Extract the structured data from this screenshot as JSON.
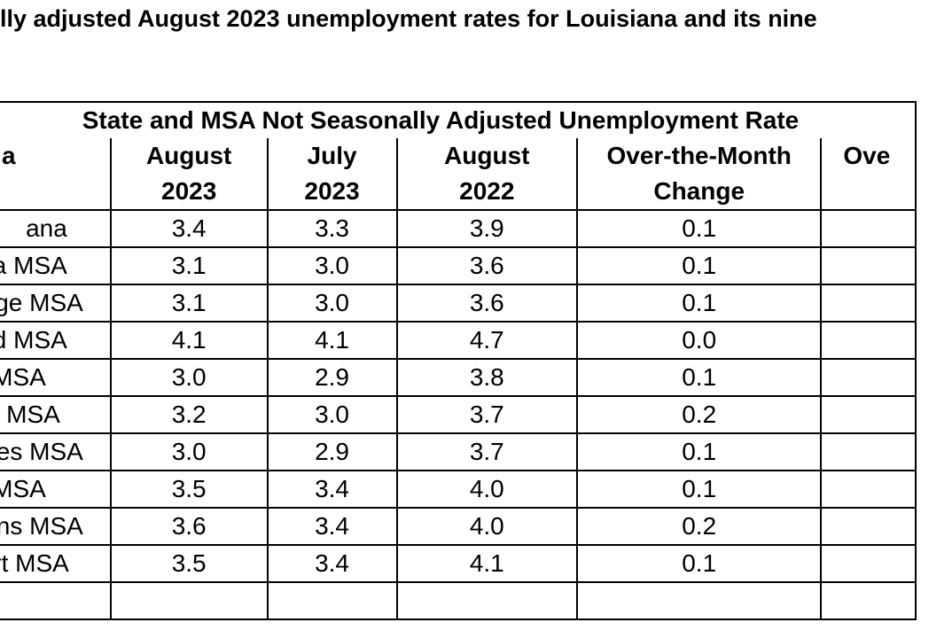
{
  "title": "lly adjusted August 2023 unemployment rates for Louisiana and its nine",
  "table": {
    "banner": "State and MSA Not Seasonally Adjusted Unemployment Rate",
    "header_row1": [
      "a",
      "August",
      "July",
      "August",
      "Over-the-Month",
      "Ove"
    ],
    "header_row2": [
      "",
      "2023",
      "2023",
      "2022",
      "Change",
      ""
    ],
    "rows": [
      {
        "area": "ana",
        "aug2023": "3.4",
        "jul2023": "3.3",
        "aug2022": "3.9",
        "otm": "0.1"
      },
      {
        "area": "a MSA",
        "aug2023": "3.1",
        "jul2023": "3.0",
        "aug2022": "3.6",
        "otm": "0.1"
      },
      {
        "area": "ge MSA",
        "aug2023": "3.1",
        "jul2023": "3.0",
        "aug2022": "3.6",
        "otm": "0.1"
      },
      {
        "area": "d MSA",
        "aug2023": "4.1",
        "jul2023": "4.1",
        "aug2022": "4.7",
        "otm": "0.0"
      },
      {
        "area": "MSA",
        "aug2023": "3.0",
        "jul2023": "2.9",
        "aug2022": "3.8",
        "otm": "0.1"
      },
      {
        "area": " MSA",
        "aug2023": "3.2",
        "jul2023": "3.0",
        "aug2022": "3.7",
        "otm": "0.2"
      },
      {
        "area": "es MSA",
        "aug2023": "3.0",
        "jul2023": "2.9",
        "aug2022": "3.7",
        "otm": "0.1"
      },
      {
        "area": "MSA",
        "aug2023": "3.5",
        "jul2023": "3.4",
        "aug2022": "4.0",
        "otm": "0.1"
      },
      {
        "area": "ns MSA",
        "aug2023": "3.6",
        "jul2023": "3.4",
        "aug2022": "4.0",
        "otm": "0.2"
      },
      {
        "area": "rt MSA",
        "aug2023": "3.5",
        "jul2023": "3.4",
        "aug2022": "4.1",
        "otm": "0.1"
      }
    ]
  }
}
